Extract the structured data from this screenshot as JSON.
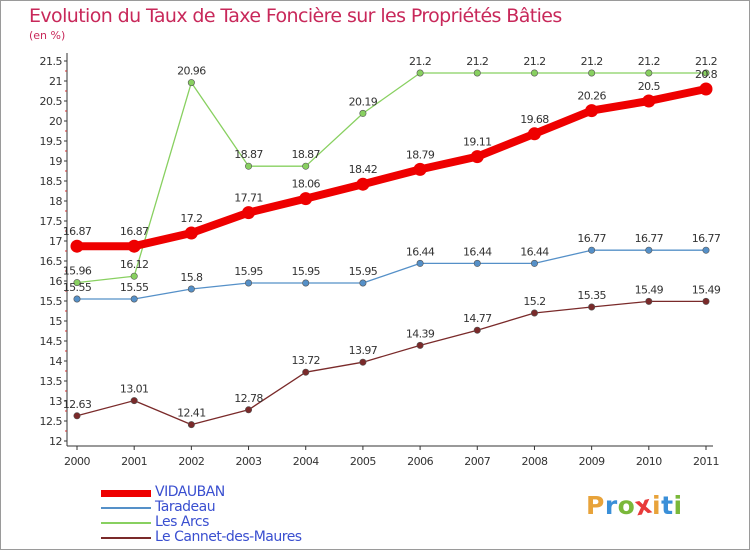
{
  "header": {
    "title": "Evolution du Taux de Taxe Foncière sur les Propriétés Bâties",
    "unit": "(en %)"
  },
  "brand": {
    "letters": [
      "P",
      "r",
      "o",
      "x",
      "i",
      "t",
      "i"
    ],
    "colors": [
      "#e8a33a",
      "#3a8fd8",
      "#7ab83a",
      "#e83a3a",
      "#e8a33a",
      "#3a8fd8",
      "#7ab83a"
    ]
  },
  "chart_data": {
    "type": "line",
    "title": "Evolution du Taux de Taxe Foncière sur les Propriétés Bâties",
    "ylabel": "(en %)",
    "xlabel": "",
    "x": [
      "2000",
      "2001",
      "2002",
      "2003",
      "2004",
      "2005",
      "2006",
      "2007",
      "2008",
      "2009",
      "2010",
      "2011"
    ],
    "ylim": [
      12,
      21.5
    ],
    "yticks": [
      "12",
      "12.5",
      "13",
      "13.5",
      "14",
      "14.5",
      "15",
      "15.5",
      "16",
      "16.5",
      "17",
      "17.5",
      "18",
      "18.5",
      "19",
      "19.5",
      "20",
      "20.5",
      "21",
      "21.5"
    ],
    "grid": false,
    "legend_position": "bottom-left",
    "series": [
      {
        "name": "VIDAUBAN",
        "color": "#ee0000",
        "values": [
          16.87,
          16.87,
          17.2,
          17.71,
          18.06,
          18.42,
          18.79,
          19.11,
          19.68,
          20.26,
          20.5,
          20.8
        ],
        "labels": [
          "16.87",
          "16.87",
          "17.2",
          "17.71",
          "18.06",
          "18.42",
          "18.79",
          "19.11",
          "19.68",
          "20.26",
          "20.5",
          "20.8"
        ]
      },
      {
        "name": "Taradeau",
        "color": "#5590c8",
        "values": [
          15.55,
          15.55,
          15.8,
          15.95,
          15.95,
          15.95,
          16.44,
          16.44,
          16.44,
          16.77,
          16.77,
          16.77
        ],
        "labels": [
          "15.55",
          "15.55",
          "15.8",
          "15.95",
          "15.95",
          "15.95",
          "16.44",
          "16.44",
          "16.44",
          "16.77",
          "16.77",
          "16.77"
        ]
      },
      {
        "name": "Les Arcs",
        "color": "#88d060",
        "values": [
          15.96,
          16.12,
          20.96,
          18.87,
          18.87,
          20.19,
          21.2,
          21.2,
          21.2,
          21.2,
          21.2,
          21.2
        ],
        "labels": [
          "15.96",
          "16.12",
          "20.96",
          "18.87",
          "18.87",
          "20.19",
          "21.2",
          "21.2",
          "21.2",
          "21.2",
          "21.2",
          "21.2"
        ]
      },
      {
        "name": "Le Cannet-des-Maures",
        "color": "#7a2a2a",
        "values": [
          12.63,
          13.01,
          12.41,
          12.78,
          13.72,
          13.97,
          14.39,
          14.77,
          15.2,
          15.35,
          15.49,
          15.49
        ],
        "labels": [
          "12.63",
          "13.01",
          "12.41",
          "12.78",
          "13.72",
          "13.97",
          "14.39",
          "14.77",
          "15.2",
          "15.35",
          "15.49",
          "15.49"
        ]
      }
    ]
  }
}
